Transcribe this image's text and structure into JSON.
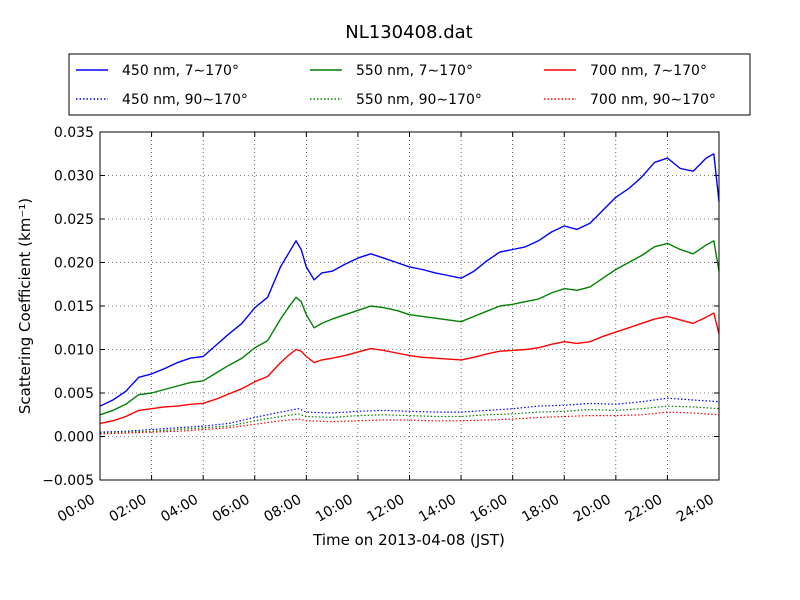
{
  "chart_data": {
    "type": "line",
    "title": "NL130408.dat",
    "xlabel": "Time on 2013-04-08 (JST)",
    "ylabel": "Scattering Coefficient (km⁻¹)",
    "xlim": [
      0,
      24
    ],
    "ylim": [
      -0.005,
      0.035
    ],
    "x_tick_labels": [
      "00:00",
      "02:00",
      "04:00",
      "06:00",
      "08:00",
      "10:00",
      "12:00",
      "14:00",
      "16:00",
      "18:00",
      "20:00",
      "22:00",
      "24:00"
    ],
    "y_tick_labels": [
      "−0.005",
      "0.000",
      "0.005",
      "0.010",
      "0.015",
      "0.020",
      "0.025",
      "0.030",
      "0.035"
    ],
    "y_ticks": [
      -0.005,
      0,
      0.005,
      0.01,
      0.015,
      0.02,
      0.025,
      0.03,
      0.035
    ],
    "grid": true,
    "legend_position": "top, above plot",
    "series": [
      {
        "name": "450 nm, 7∼170°",
        "color": "#0000ff",
        "style": "solid",
        "x": [
          0,
          0.5,
          1,
          1.5,
          2,
          2.5,
          3,
          3.5,
          4,
          4.5,
          5,
          5.5,
          6,
          6.5,
          7,
          7.3,
          7.6,
          7.8,
          8,
          8.3,
          8.6,
          9,
          9.5,
          10,
          10.5,
          11,
          11.5,
          12,
          12.5,
          13,
          13.5,
          14,
          14.5,
          15,
          15.5,
          16,
          16.5,
          17,
          17.5,
          18,
          18.5,
          19,
          19.5,
          20,
          20.5,
          21,
          21.5,
          22,
          22.5,
          23,
          23.5,
          23.8,
          24
        ],
        "y": [
          0.0035,
          0.0042,
          0.0052,
          0.0068,
          0.0072,
          0.0078,
          0.0085,
          0.009,
          0.0092,
          0.0105,
          0.0118,
          0.013,
          0.0148,
          0.016,
          0.0195,
          0.021,
          0.0225,
          0.0215,
          0.0195,
          0.018,
          0.0188,
          0.019,
          0.0198,
          0.0205,
          0.021,
          0.0205,
          0.02,
          0.0195,
          0.0192,
          0.0188,
          0.0185,
          0.0182,
          0.019,
          0.0202,
          0.0212,
          0.0215,
          0.0218,
          0.0225,
          0.0235,
          0.0242,
          0.0238,
          0.0245,
          0.026,
          0.0275,
          0.0285,
          0.0298,
          0.0315,
          0.032,
          0.0308,
          0.0305,
          0.032,
          0.0325,
          0.027
        ]
      },
      {
        "name": "550 nm, 7∼170°",
        "color": "#008000",
        "style": "solid",
        "x": [
          0,
          0.5,
          1,
          1.5,
          2,
          2.5,
          3,
          3.5,
          4,
          4.5,
          5,
          5.5,
          6,
          6.5,
          7,
          7.3,
          7.6,
          7.8,
          8,
          8.3,
          8.6,
          9,
          9.5,
          10,
          10.5,
          11,
          11.5,
          12,
          12.5,
          13,
          13.5,
          14,
          14.5,
          15,
          15.5,
          16,
          16.5,
          17,
          17.5,
          18,
          18.5,
          19,
          19.5,
          20,
          20.5,
          21,
          21.5,
          22,
          22.5,
          23,
          23.5,
          23.8,
          24
        ],
        "y": [
          0.0025,
          0.003,
          0.0037,
          0.0048,
          0.005,
          0.0054,
          0.0058,
          0.0062,
          0.0064,
          0.0073,
          0.0082,
          0.009,
          0.0102,
          0.011,
          0.0135,
          0.0148,
          0.016,
          0.0155,
          0.014,
          0.0125,
          0.013,
          0.0135,
          0.014,
          0.0145,
          0.015,
          0.0148,
          0.0145,
          0.014,
          0.0138,
          0.0136,
          0.0134,
          0.0132,
          0.0138,
          0.0144,
          0.015,
          0.0152,
          0.0155,
          0.0158,
          0.0165,
          0.017,
          0.0168,
          0.0172,
          0.0182,
          0.0192,
          0.02,
          0.0208,
          0.0218,
          0.0222,
          0.0215,
          0.021,
          0.022,
          0.0225,
          0.019
        ]
      },
      {
        "name": "700 nm, 7∼170°",
        "color": "#ff0000",
        "style": "solid",
        "x": [
          0,
          0.5,
          1,
          1.5,
          2,
          2.5,
          3,
          3.5,
          4,
          4.5,
          5,
          5.5,
          6,
          6.5,
          7,
          7.3,
          7.6,
          7.8,
          8,
          8.3,
          8.6,
          9,
          9.5,
          10,
          10.5,
          11,
          11.5,
          12,
          12.5,
          13,
          13.5,
          14,
          14.5,
          15,
          15.5,
          16,
          16.5,
          17,
          17.5,
          18,
          18.5,
          19,
          19.5,
          20,
          20.5,
          21,
          21.5,
          22,
          22.5,
          23,
          23.5,
          23.8,
          24
        ],
        "y": [
          0.0015,
          0.0018,
          0.0023,
          0.003,
          0.0032,
          0.0034,
          0.0035,
          0.0037,
          0.0038,
          0.0043,
          0.0049,
          0.0055,
          0.0063,
          0.0069,
          0.0085,
          0.0093,
          0.01,
          0.0098,
          0.0092,
          0.0085,
          0.0088,
          0.009,
          0.0093,
          0.0097,
          0.0101,
          0.0099,
          0.0096,
          0.0093,
          0.0091,
          0.009,
          0.0089,
          0.0088,
          0.0091,
          0.0095,
          0.0098,
          0.0099,
          0.01,
          0.0102,
          0.0106,
          0.0109,
          0.0107,
          0.0109,
          0.0115,
          0.012,
          0.0125,
          0.013,
          0.0135,
          0.0138,
          0.0134,
          0.013,
          0.0137,
          0.0142,
          0.0118
        ]
      },
      {
        "name": "450 nm, 90∼170°",
        "color": "#0000ff",
        "style": "dotted",
        "x": [
          0,
          1,
          2,
          3,
          4,
          5,
          6,
          7,
          7.7,
          8,
          9,
          10,
          11,
          12,
          13,
          14,
          15,
          16,
          17,
          18,
          19,
          20,
          21,
          22,
          23,
          24
        ],
        "y": [
          0.0005,
          0.0006,
          0.0008,
          0.001,
          0.0012,
          0.0015,
          0.0022,
          0.0028,
          0.0032,
          0.0028,
          0.0027,
          0.0029,
          0.003,
          0.0029,
          0.0028,
          0.0028,
          0.003,
          0.0032,
          0.0035,
          0.0036,
          0.0038,
          0.0037,
          0.004,
          0.0044,
          0.0042,
          0.004
        ]
      },
      {
        "name": "550 nm, 90∼170°",
        "color": "#008000",
        "style": "dotted",
        "x": [
          0,
          1,
          2,
          3,
          4,
          5,
          6,
          7,
          7.7,
          8,
          9,
          10,
          11,
          12,
          13,
          14,
          15,
          16,
          17,
          18,
          19,
          20,
          21,
          22,
          23,
          24
        ],
        "y": [
          0.0004,
          0.0005,
          0.0006,
          0.0008,
          0.001,
          0.0012,
          0.0018,
          0.0023,
          0.0026,
          0.0023,
          0.0022,
          0.0024,
          0.0025,
          0.0024,
          0.0023,
          0.0023,
          0.0025,
          0.0026,
          0.0028,
          0.0029,
          0.0031,
          0.003,
          0.0032,
          0.0035,
          0.0034,
          0.0032
        ]
      },
      {
        "name": "700 nm, 90∼170°",
        "color": "#ff0000",
        "style": "dotted",
        "x": [
          0,
          1,
          2,
          3,
          4,
          5,
          6,
          7,
          7.7,
          8,
          9,
          10,
          11,
          12,
          13,
          14,
          15,
          16,
          17,
          18,
          19,
          20,
          21,
          22,
          23,
          24
        ],
        "y": [
          0.0003,
          0.0004,
          0.0005,
          0.0006,
          0.0008,
          0.001,
          0.0014,
          0.0018,
          0.002,
          0.0018,
          0.0017,
          0.0018,
          0.0019,
          0.0019,
          0.0018,
          0.0018,
          0.0019,
          0.002,
          0.0022,
          0.0023,
          0.0024,
          0.0024,
          0.0025,
          0.0028,
          0.0027,
          0.0025
        ]
      }
    ]
  }
}
